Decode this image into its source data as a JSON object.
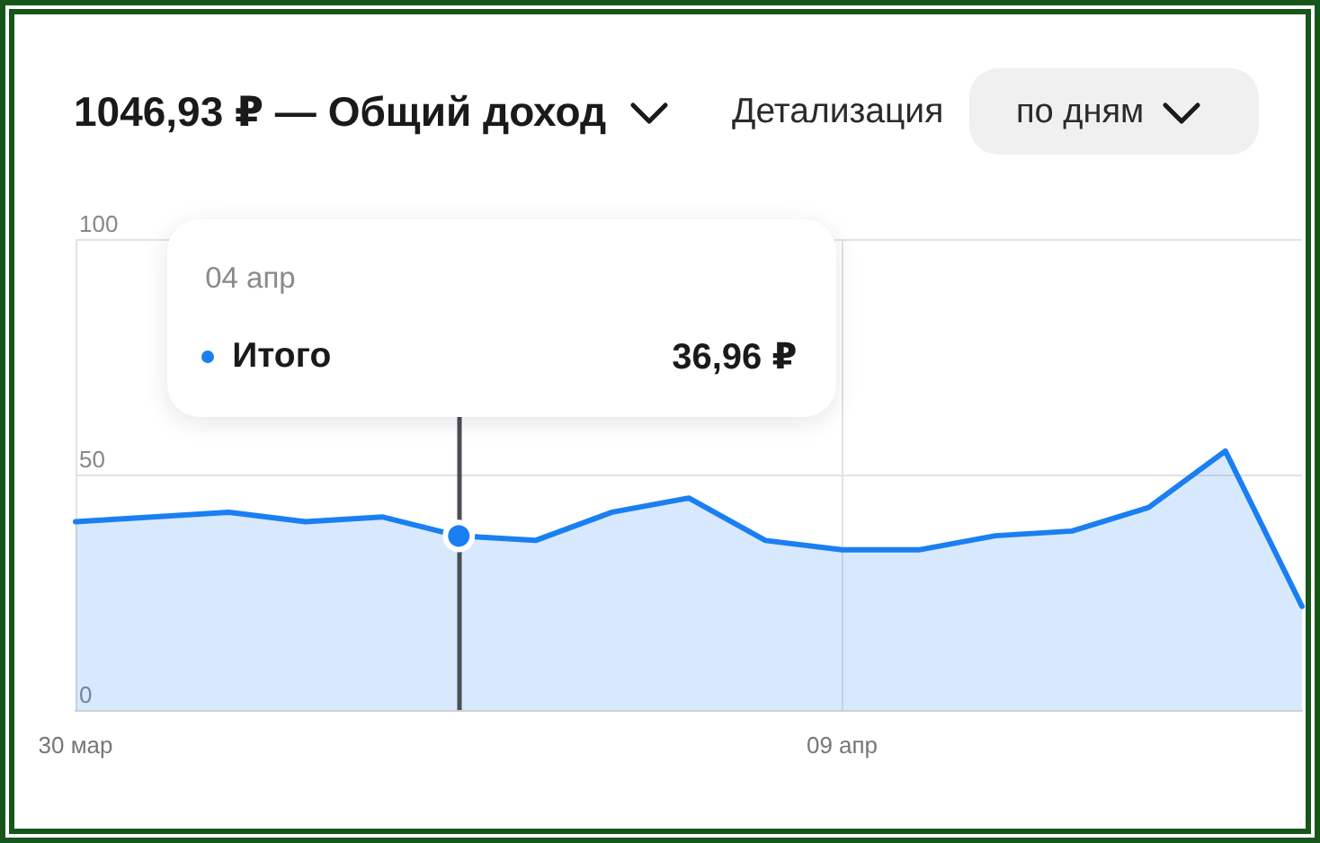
{
  "chart_data": {
    "type": "area",
    "title": "1046,93 ₽ — Общий доход",
    "x": [
      "--03-30",
      "--03-31",
      "--04-01",
      "--04-02",
      "--04-03",
      "--04-04",
      "--04-05",
      "--04-06",
      "--04-07",
      "--04-08",
      "--04-09",
      "--04-10",
      "--04-11",
      "--04-12",
      "--04-13",
      "--04-14",
      "--04-15"
    ],
    "series": [
      {
        "name": "Итого",
        "color": "#1a7ff2",
        "values": [
          40,
          41,
          42,
          40,
          41,
          36.96,
          36,
          42,
          45,
          36,
          34,
          34,
          37,
          38,
          43,
          55,
          22
        ]
      },
      {
        "type": "scatter",
        "color": "#1a7ff2",
        "marker": "circle",
        "x": [
          "--04-04"
        ],
        "values": [
          36.96
        ]
      }
    ],
    "xlim": [
      "--03-30",
      "--04-15"
    ],
    "xticks": [
      {
        "value": "--03-30",
        "label": "30 мар"
      },
      {
        "value": "--04-09",
        "label": "09 апр"
      }
    ],
    "ylim": [
      0,
      100
    ],
    "yticks": [
      0,
      50,
      100
    ],
    "grid": true,
    "marker": "none",
    "ref_lines": [
      {
        "axis": "x",
        "value": "--04-04",
        "color": "#4b4f54"
      }
    ],
    "annotations": [
      "Детализация",
      "по дням",
      "04 апр",
      "36,96 ₽"
    ]
  }
}
